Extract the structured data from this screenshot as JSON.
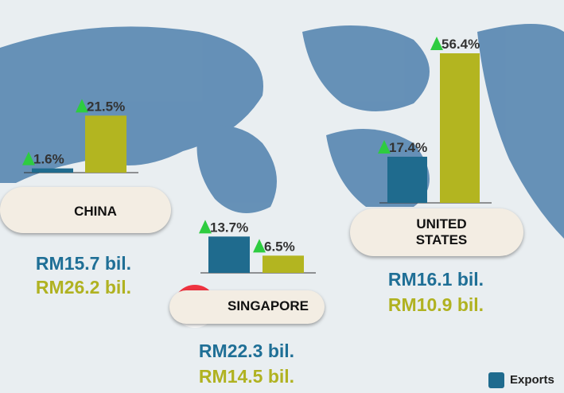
{
  "chart_data": {
    "type": "bar",
    "categories": [
      "CHINA",
      "SINGAPORE",
      "UNITED STATES"
    ],
    "series": [
      {
        "name": "Exports",
        "color": "#1f6b8e",
        "values": [
          1.6,
          13.7,
          17.4
        ],
        "value_labels": [
          "1.6%",
          "13.7%",
          "17.4%"
        ],
        "amounts": [
          15.7,
          22.3,
          16.1
        ],
        "amount_labels": [
          "RM15.7 bil.",
          "RM22.3 bil.",
          "RM16.1 bil."
        ],
        "amount_color": "#1f6f96"
      },
      {
        "color": "#b3b520",
        "values": [
          21.5,
          6.5,
          56.4
        ],
        "value_labels": [
          "21.5%",
          "6.5%",
          "56.4%"
        ],
        "amounts": [
          26.2,
          14.5,
          10.9
        ],
        "amount_labels": [
          "RM26.2 bil.",
          "RM14.5 bil.",
          "RM10.9 bil."
        ],
        "amount_color": "#b0b221"
      }
    ],
    "ylim": [
      0,
      60
    ],
    "legend": "bottom-right"
  }
}
